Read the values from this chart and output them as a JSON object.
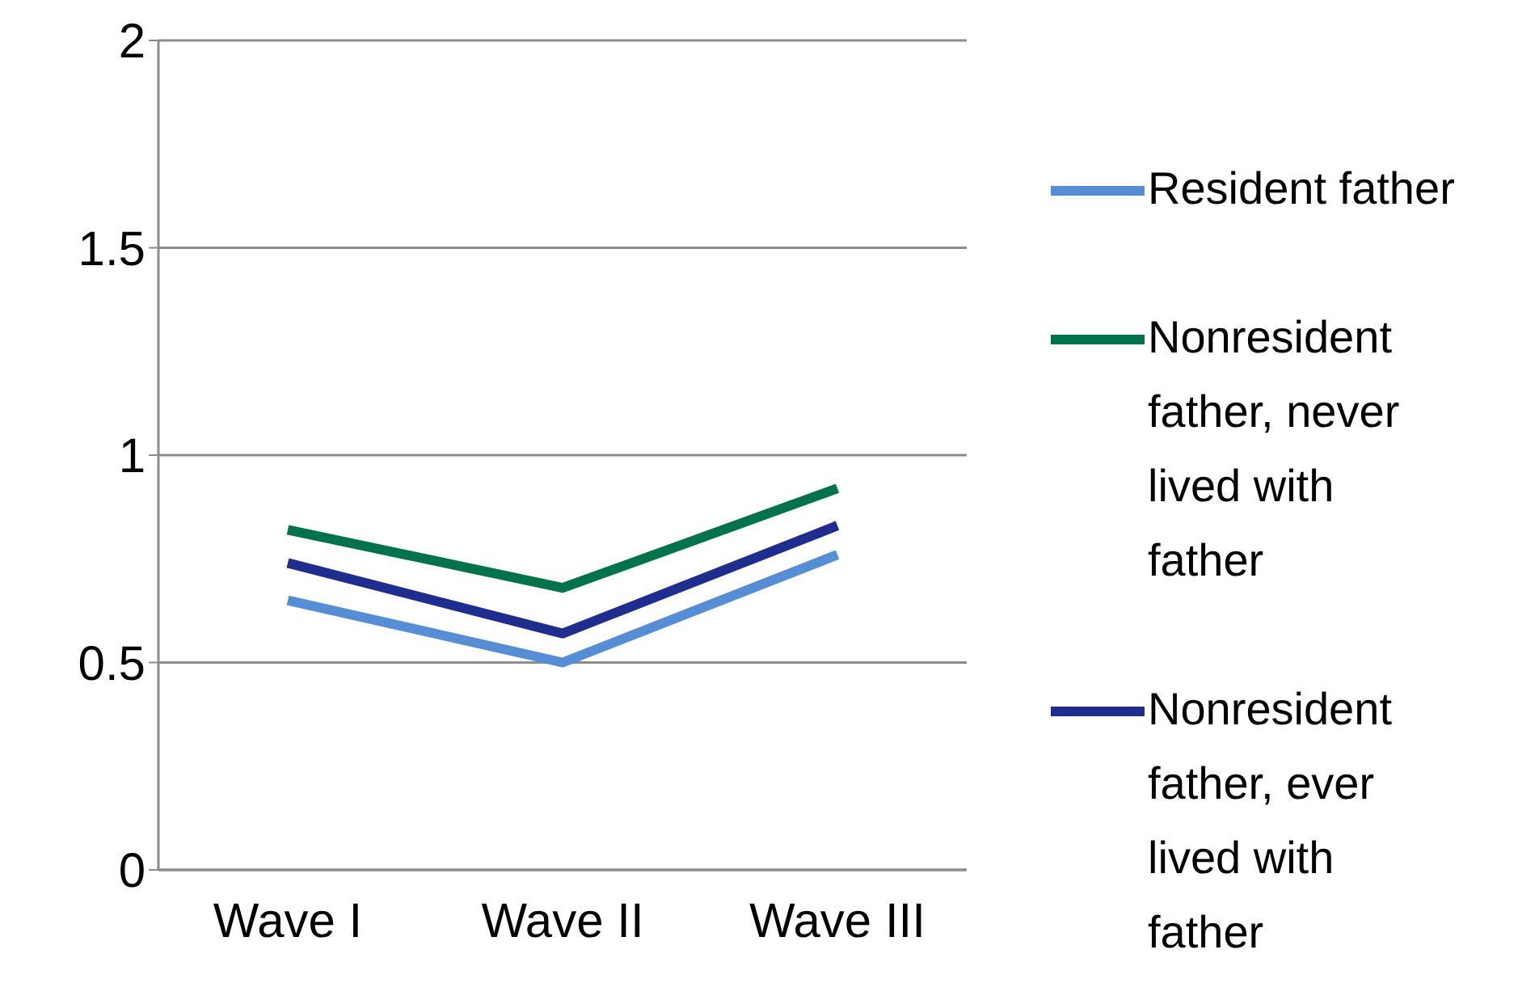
{
  "chart_data": {
    "type": "line",
    "categories": [
      "Wave I",
      "Wave II",
      "Wave III"
    ],
    "series": [
      {
        "name": "Resident father",
        "color": "#558ed5",
        "values": [
          0.65,
          0.5,
          0.76
        ]
      },
      {
        "name": "Nonresident father, never lived with father",
        "color": "#00734a",
        "values": [
          0.82,
          0.68,
          0.92
        ]
      },
      {
        "name": "Nonresident father, ever lived with father",
        "color": "#1f2d8f",
        "values": [
          0.74,
          0.57,
          0.83
        ]
      }
    ],
    "ylim": [
      0,
      2
    ],
    "yticks": [
      0,
      0.5,
      1,
      1.5,
      2
    ],
    "grid": "y",
    "legend": "right",
    "marker": "none",
    "line_style": "solid"
  }
}
